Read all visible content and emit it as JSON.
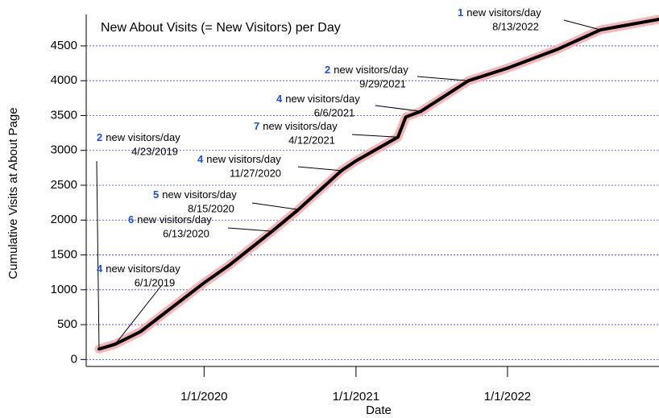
{
  "chart_data": {
    "type": "line",
    "title": "New About Visits (= New Visitors) per Day",
    "x_label": "Date",
    "y_label": "Cumulative Visits at About Page",
    "x": [
      "4/23/2019",
      "6/1/2019",
      "8/1/2019",
      "10/1/2019",
      "1/1/2020",
      "3/1/2020",
      "6/13/2020",
      "8/15/2020",
      "11/27/2020",
      "1/1/2021",
      "4/12/2021",
      "5/1/2021",
      "6/6/2021",
      "9/29/2021",
      "1/1/2022",
      "5/1/2022",
      "8/13/2022",
      "12/31/2022"
    ],
    "series": [
      {
        "name": "Cumulative Visits",
        "color": "#000000",
        "glow_color": "#f4b6b6",
        "values": [
          150,
          220,
          400,
          680,
          1100,
          1350,
          1840,
          2150,
          2710,
          2850,
          3190,
          3480,
          3560,
          4000,
          4180,
          4450,
          4730,
          4880
        ]
      }
    ],
    "xlim": [
      "3/23/2019",
      "1/1/2023"
    ],
    "xticks": [
      "1/1/2020",
      "1/1/2021",
      "1/1/2022"
    ],
    "ylim": [
      -100,
      4950
    ],
    "yticks": [
      0,
      500,
      1000,
      1500,
      2000,
      2500,
      3000,
      3500,
      4000,
      4500
    ],
    "grid": true,
    "grid_color": "#3b3bd6",
    "annotations": [
      {
        "count": 1,
        "text": "new visitors/day",
        "date": "8/13/2022"
      },
      {
        "count": 2,
        "text": "new visitors/day",
        "date": "9/29/2021"
      },
      {
        "count": 4,
        "text": "new visitors/day",
        "date": "6/6/2021"
      },
      {
        "count": 7,
        "text": "new visitors/day",
        "date": "4/12/2021"
      },
      {
        "count": 4,
        "text": "new visitors/day",
        "date": "11/27/2020"
      },
      {
        "count": 5,
        "text": "new visitors/day",
        "date": "8/15/2020"
      },
      {
        "count": 6,
        "text": "new visitors/day",
        "date": "6/13/2020"
      },
      {
        "count": 2,
        "text": "new visitors/day",
        "date": "4/23/2019"
      },
      {
        "count": 4,
        "text": "new visitors/day",
        "date": "6/1/2019"
      }
    ]
  }
}
